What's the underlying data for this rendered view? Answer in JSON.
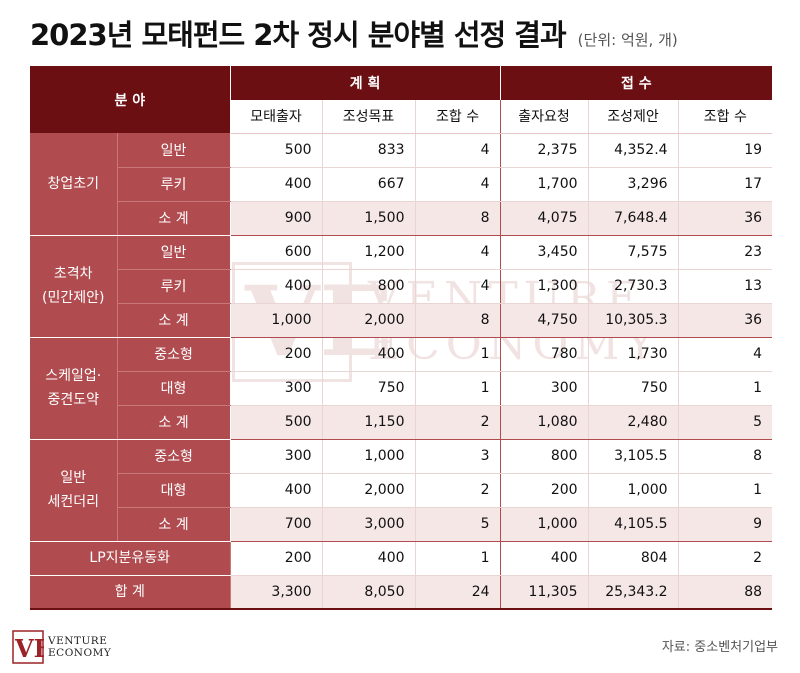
{
  "title": "2023년 모태펀드 2차 정시 분야별 선정 결과",
  "unit_note": "(단위: 억원, 개)",
  "header": {
    "category": "분 야",
    "plan": "계 획",
    "received": "접 수",
    "plan_cols": [
      "모태출자",
      "조성목표",
      "조합 수"
    ],
    "received_cols": [
      "출자요청",
      "조성제안",
      "조합 수"
    ]
  },
  "groups": [
    {
      "name": "창업초기",
      "rows": [
        {
          "sub": "일반",
          "plan": [
            "500",
            "833",
            "4"
          ],
          "received": [
            "2,375",
            "4,352.4",
            "19"
          ]
        },
        {
          "sub": "루키",
          "plan": [
            "400",
            "667",
            "4"
          ],
          "received": [
            "1,700",
            "3,296",
            "17"
          ]
        },
        {
          "sub": "소 계",
          "plan": [
            "900",
            "1,500",
            "8"
          ],
          "received": [
            "4,075",
            "7,648.4",
            "36"
          ]
        }
      ]
    },
    {
      "name": "초격차\n(민간제안)",
      "rows": [
        {
          "sub": "일반",
          "plan": [
            "600",
            "1,200",
            "4"
          ],
          "received": [
            "3,450",
            "7,575",
            "23"
          ]
        },
        {
          "sub": "루키",
          "plan": [
            "400",
            "800",
            "4"
          ],
          "received": [
            "1,300",
            "2,730.3",
            "13"
          ]
        },
        {
          "sub": "소 계",
          "plan": [
            "1,000",
            "2,000",
            "8"
          ],
          "received": [
            "4,750",
            "10,305.3",
            "36"
          ]
        }
      ]
    },
    {
      "name": "스케일업·\n중견도약",
      "rows": [
        {
          "sub": "중소형",
          "plan": [
            "200",
            "400",
            "1"
          ],
          "received": [
            "780",
            "1,730",
            "4"
          ]
        },
        {
          "sub": "대형",
          "plan": [
            "300",
            "750",
            "1"
          ],
          "received": [
            "300",
            "750",
            "1"
          ]
        },
        {
          "sub": "소 계",
          "plan": [
            "500",
            "1,150",
            "2"
          ],
          "received": [
            "1,080",
            "2,480",
            "5"
          ]
        }
      ]
    },
    {
      "name": "일반\n세컨더리",
      "rows": [
        {
          "sub": "중소형",
          "plan": [
            "300",
            "1,000",
            "3"
          ],
          "received": [
            "800",
            "3,105.5",
            "8"
          ]
        },
        {
          "sub": "대형",
          "plan": [
            "400",
            "2,000",
            "2"
          ],
          "received": [
            "200",
            "1,000",
            "1"
          ]
        },
        {
          "sub": "소 계",
          "plan": [
            "700",
            "3,000",
            "5"
          ],
          "received": [
            "1,000",
            "4,105.5",
            "9"
          ]
        }
      ]
    }
  ],
  "lp_row": {
    "name": "LP지분유동화",
    "plan": [
      "200",
      "400",
      "1"
    ],
    "received": [
      "400",
      "804",
      "2"
    ]
  },
  "total_row": {
    "name": "합 계",
    "plan": [
      "3,300",
      "8,050",
      "24"
    ],
    "received": [
      "11,305",
      "25,343.2",
      "88"
    ]
  },
  "logo": {
    "mark": "VE",
    "line1": "VENTURE",
    "line2": "ECONOMY"
  },
  "watermark": {
    "line1": "VENTURE",
    "line2": "ECONOMY"
  },
  "source": "자료: 중소벤처기업부",
  "colors": {
    "header": "#6b0f12",
    "category": "#b04c50",
    "subtotal_bg": "#f6e7e7"
  }
}
